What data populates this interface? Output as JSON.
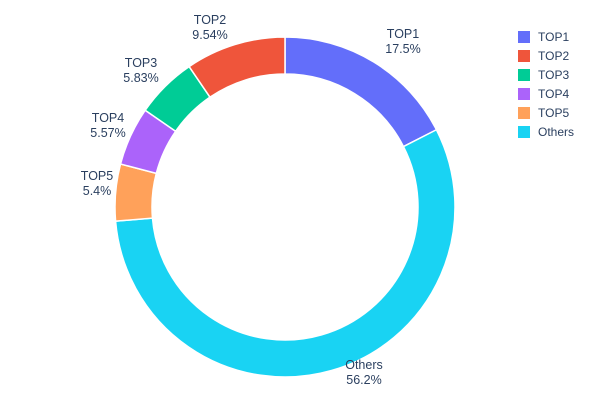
{
  "chart_data": {
    "type": "pie",
    "subtype": "donut",
    "title": "",
    "labels": [
      "TOP1",
      "TOP2",
      "TOP3",
      "TOP4",
      "TOP5",
      "Others"
    ],
    "values": [
      17.5,
      9.54,
      5.83,
      5.57,
      5.4,
      56.2
    ],
    "percent_labels": [
      "17.5%",
      "9.54%",
      "5.83%",
      "5.57%",
      "5.4%",
      "56.2%"
    ],
    "colors": [
      "#636EFA",
      "#EF553B",
      "#00CC96",
      "#AB63FA",
      "#FFA15A",
      "#19D3F3"
    ],
    "legend": {
      "position": "top-right",
      "entries": [
        "TOP1",
        "TOP2",
        "TOP3",
        "TOP4",
        "TOP5",
        "Others"
      ]
    },
    "layout": {
      "hole_ratio": 0.78,
      "rotation_deg": 0,
      "order_clockwise_from_top": [
        "TOP1",
        "Others",
        "TOP5",
        "TOP4",
        "TOP3",
        "TOP2"
      ],
      "label_position": "outside",
      "text_color": "#2a3f5f",
      "background": "#ffffff"
    }
  }
}
